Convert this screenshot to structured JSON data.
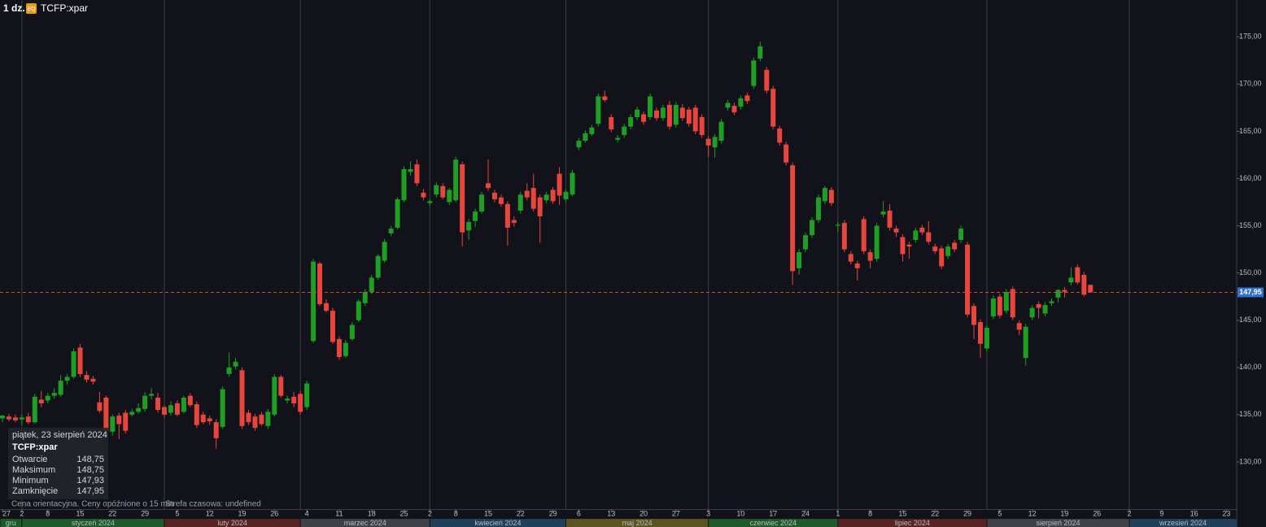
{
  "chart_data": {
    "type": "candlestick",
    "interval": "1 dz.",
    "badge": "EQ",
    "title": "TCFP:xpar",
    "up_color": "#1f9e24",
    "down_color": "#e8453c",
    "x": [
      "2023-12-27",
      "2023-12-28",
      "2023-12-29",
      "2024-01-02",
      "2024-01-03",
      "2024-01-04",
      "2024-01-05",
      "2024-01-08",
      "2024-01-09",
      "2024-01-10",
      "2024-01-11",
      "2024-01-12",
      "2024-01-15",
      "2024-01-16",
      "2024-01-17",
      "2024-01-18",
      "2024-01-19",
      "2024-01-22",
      "2024-01-23",
      "2024-01-24",
      "2024-01-25",
      "2024-01-26",
      "2024-01-29",
      "2024-01-30",
      "2024-01-31",
      "2024-02-01",
      "2024-02-02",
      "2024-02-05",
      "2024-02-06",
      "2024-02-07",
      "2024-02-08",
      "2024-02-09",
      "2024-02-12",
      "2024-02-13",
      "2024-02-14",
      "2024-02-15",
      "2024-02-16",
      "2024-02-19",
      "2024-02-20",
      "2024-02-21",
      "2024-02-22",
      "2024-02-23",
      "2024-02-26",
      "2024-02-27",
      "2024-02-28",
      "2024-02-29",
      "2024-03-01",
      "2024-03-04",
      "2024-03-05",
      "2024-03-06",
      "2024-03-07",
      "2024-03-08",
      "2024-03-11",
      "2024-03-12",
      "2024-03-13",
      "2024-03-14",
      "2024-03-15",
      "2024-03-18",
      "2024-03-19",
      "2024-03-20",
      "2024-03-21",
      "2024-03-22",
      "2024-03-25",
      "2024-03-26",
      "2024-03-27",
      "2024-03-28",
      "2024-04-02",
      "2024-04-03",
      "2024-04-04",
      "2024-04-05",
      "2024-04-08",
      "2024-04-09",
      "2024-04-10",
      "2024-04-11",
      "2024-04-12",
      "2024-04-15",
      "2024-04-16",
      "2024-04-17",
      "2024-04-18",
      "2024-04-19",
      "2024-04-22",
      "2024-04-23",
      "2024-04-24",
      "2024-04-25",
      "2024-04-26",
      "2024-04-29",
      "2024-04-30",
      "2024-05-02",
      "2024-05-03",
      "2024-05-06",
      "2024-05-07",
      "2024-05-08",
      "2024-05-09",
      "2024-05-10",
      "2024-05-13",
      "2024-05-14",
      "2024-05-15",
      "2024-05-16",
      "2024-05-17",
      "2024-05-20",
      "2024-05-21",
      "2024-05-22",
      "2024-05-23",
      "2024-05-24",
      "2024-05-27",
      "2024-05-28",
      "2024-05-29",
      "2024-05-30",
      "2024-05-31",
      "2024-06-03",
      "2024-06-04",
      "2024-06-05",
      "2024-06-06",
      "2024-06-07",
      "2024-06-10",
      "2024-06-11",
      "2024-06-12",
      "2024-06-13",
      "2024-06-14",
      "2024-06-17",
      "2024-06-18",
      "2024-06-19",
      "2024-06-20",
      "2024-06-21",
      "2024-06-24",
      "2024-06-25",
      "2024-06-26",
      "2024-06-27",
      "2024-06-28",
      "2024-07-01",
      "2024-07-02",
      "2024-07-03",
      "2024-07-04",
      "2024-07-05",
      "2024-07-08",
      "2024-07-09",
      "2024-07-10",
      "2024-07-11",
      "2024-07-12",
      "2024-07-15",
      "2024-07-16",
      "2024-07-17",
      "2024-07-18",
      "2024-07-19",
      "2024-07-22",
      "2024-07-23",
      "2024-07-24",
      "2024-07-25",
      "2024-07-26",
      "2024-07-29",
      "2024-07-30",
      "2024-07-31",
      "2024-08-01",
      "2024-08-02",
      "2024-08-05",
      "2024-08-06",
      "2024-08-07",
      "2024-08-08",
      "2024-08-09",
      "2024-08-12",
      "2024-08-13",
      "2024-08-14",
      "2024-08-15",
      "2024-08-16",
      "2024-08-19",
      "2024-08-20",
      "2024-08-21",
      "2024-08-22",
      "2024-08-23"
    ],
    "open": [
      134.6,
      134.8,
      134.7,
      134.5,
      134.8,
      134.2,
      136.6,
      136.5,
      137.0,
      137.1,
      138.6,
      139.0,
      142.1,
      139.2,
      138.8,
      136.3,
      136.8,
      133.2,
      134.9,
      135.2,
      135.0,
      135.3,
      135.6,
      137.0,
      136.8,
      135.8,
      135.2,
      136.2,
      135.3,
      137.0,
      136.1,
      135.0,
      134.6,
      134.2,
      133.7,
      139.3,
      140.1,
      139.7,
      135.2,
      134.8,
      135.0,
      133.8,
      135.0,
      139.0,
      136.5,
      136.9,
      137.2,
      135.8,
      142.8,
      151.0,
      146.8,
      146.0,
      143.0,
      141.2,
      143.0,
      145.0,
      146.8,
      148.0,
      149.5,
      151.3,
      154.2,
      154.8,
      157.7,
      160.7,
      161.5,
      158.5,
      157.4,
      158.3,
      159.2,
      157.5,
      157.7,
      161.5,
      154.5,
      155.5,
      156.5,
      159.5,
      158.5,
      158.0,
      157.3,
      155.6,
      156.6,
      158.7,
      159.0,
      158.0,
      157.7,
      158.8,
      160.5,
      157.8,
      158.3,
      163.3,
      164.0,
      164.7,
      165.8,
      168.7,
      166.5,
      164.1,
      164.6,
      165.5,
      166.5,
      166.8,
      166.5,
      167.2,
      166.4,
      167.8,
      165.7,
      167.5,
      167.3,
      167.5,
      166.5,
      164.2,
      163.3,
      164.0,
      167.5,
      167.7,
      167.6,
      168.8,
      169.8,
      172.7,
      171.5,
      169.5,
      165.3,
      163.6,
      161.4,
      150.5,
      152.5,
      154.0,
      155.6,
      157.6,
      158.8,
      155.0,
      155.3,
      152.0,
      151.0,
      155.7,
      152.2,
      151.5,
      156.2,
      156.6,
      154.7,
      153.8,
      153.0,
      153.5,
      154.8,
      154.3,
      152.8,
      152.6,
      151.8,
      153.2,
      153.5,
      153.0,
      146.5,
      144.8,
      142.0,
      145.4,
      147.5,
      146.0,
      148.3,
      144.7,
      141.0,
      145.3,
      146.7,
      145.7,
      146.8,
      147.4,
      148.2,
      149.0,
      150.6,
      149.8,
      148.75
    ],
    "high": [
      135.0,
      135.1,
      135.0,
      135.0,
      135.2,
      137.2,
      137.5,
      137.3,
      137.8,
      139.2,
      139.3,
      142.0,
      142.5,
      139.6,
      139.1,
      137.4,
      137.0,
      135.0,
      135.2,
      135.5,
      135.6,
      136.2,
      137.4,
      137.8,
      137.3,
      136.0,
      136.4,
      136.5,
      137.0,
      137.3,
      136.4,
      135.3,
      134.9,
      134.5,
      138.0,
      141.6,
      141.0,
      140.0,
      135.5,
      135.1,
      135.3,
      135.6,
      139.3,
      139.2,
      137.0,
      137.4,
      137.5,
      138.6,
      151.5,
      151.2,
      147.2,
      146.3,
      143.3,
      142.9,
      144.8,
      147.2,
      148.3,
      149.8,
      152.0,
      153.6,
      155.0,
      158.0,
      161.3,
      161.8,
      162.0,
      158.9,
      157.8,
      159.6,
      159.5,
      159.0,
      162.3,
      161.8,
      155.7,
      156.8,
      158.6,
      162.0,
      158.8,
      158.3,
      157.6,
      156.0,
      158.6,
      159.5,
      160.5,
      158.3,
      158.6,
      159.1,
      161.2,
      158.9,
      160.9,
      164.3,
      165.1,
      165.7,
      169.0,
      169.3,
      166.8,
      164.6,
      165.8,
      166.8,
      167.6,
      167.1,
      169.0,
      167.5,
      167.8,
      168.2,
      168.1,
      167.9,
      167.6,
      167.8,
      166.8,
      164.5,
      164.7,
      166.3,
      168.3,
      168.0,
      168.8,
      169.1,
      172.8,
      174.5,
      171.8,
      169.8,
      165.6,
      163.9,
      161.7,
      152.5,
      154.3,
      155.9,
      158.3,
      159.2,
      159.1,
      155.4,
      155.6,
      152.3,
      151.3,
      156.0,
      152.5,
      155.3,
      157.6,
      157.3,
      155.0,
      154.1,
      153.3,
      154.8,
      155.1,
      155.5,
      153.1,
      152.9,
      153.1,
      153.5,
      155.0,
      153.3,
      146.8,
      145.1,
      144.5,
      147.6,
      147.8,
      148.3,
      148.6,
      145.0,
      144.6,
      146.6,
      147.0,
      146.9,
      147.3,
      148.3,
      148.5,
      150.6,
      150.9,
      150.1,
      148.75
    ],
    "low": [
      134.2,
      134.3,
      134.2,
      133.9,
      134.0,
      134.0,
      135.8,
      136.2,
      136.7,
      136.9,
      138.2,
      138.8,
      139.0,
      138.4,
      138.2,
      135.2,
      132.9,
      132.8,
      132.4,
      133.0,
      134.8,
      135.1,
      135.3,
      136.6,
      135.2,
      134.7,
      134.9,
      134.8,
      135.1,
      135.8,
      133.6,
      134.0,
      133.9,
      131.4,
      133.5,
      139.0,
      139.8,
      133.5,
      133.9,
      133.3,
      133.8,
      133.5,
      134.8,
      136.8,
      136.2,
      135.8,
      135.0,
      135.5,
      142.6,
      146.5,
      145.8,
      142.5,
      140.8,
      141.0,
      142.8,
      144.8,
      146.5,
      147.8,
      149.3,
      151.1,
      153.9,
      154.6,
      157.5,
      160.3,
      159.2,
      157.7,
      157.1,
      158.0,
      157.8,
      157.2,
      157.5,
      152.8,
      153.5,
      154.9,
      156.3,
      158.7,
      157.5,
      157.0,
      152.9,
      154.9,
      156.3,
      157.7,
      156.5,
      153.2,
      157.4,
      157.3,
      157.2,
      157.5,
      158.1,
      163.0,
      163.8,
      164.5,
      165.5,
      168.1,
      164.9,
      163.8,
      164.3,
      165.2,
      166.2,
      165.7,
      166.2,
      166.1,
      166.1,
      165.2,
      165.4,
      166.1,
      165.5,
      164.7,
      164.3,
      162.3,
      162.2,
      163.7,
      167.2,
      166.7,
      167.3,
      167.9,
      169.5,
      172.4,
      169.0,
      165.2,
      163.5,
      161.4,
      148.7,
      149.8,
      152.2,
      153.7,
      155.3,
      157.3,
      157.1,
      154.3,
      152.2,
      150.9,
      149.2,
      152.0,
      150.5,
      151.2,
      155.9,
      154.5,
      153.8,
      151.2,
      151.5,
      153.2,
      154.0,
      153.0,
      152.0,
      150.4,
      151.5,
      152.2,
      153.2,
      145.3,
      143.0,
      141.0,
      141.7,
      145.1,
      145.2,
      145.7,
      145.0,
      143.4,
      140.2,
      145.0,
      145.2,
      145.4,
      146.5,
      146.9,
      147.4,
      148.7,
      148.8,
      147.5,
      147.93
    ],
    "close": [
      134.9,
      134.5,
      134.4,
      134.7,
      134.2,
      136.9,
      136.2,
      137.0,
      137.3,
      138.6,
      139.0,
      141.7,
      139.3,
      138.7,
      138.5,
      135.4,
      133.3,
      134.8,
      134.0,
      133.3,
      135.3,
      135.7,
      137.0,
      137.2,
      135.5,
      135.0,
      136.0,
      135.0,
      136.8,
      136.0,
      133.9,
      134.2,
      134.3,
      132.5,
      137.7,
      140.0,
      140.6,
      133.8,
      134.2,
      133.6,
      134.0,
      135.3,
      139.0,
      137.0,
      136.7,
      136.2,
      135.3,
      138.3,
      151.2,
      146.7,
      146.0,
      142.7,
      141.1,
      142.6,
      144.5,
      147.0,
      148.0,
      149.5,
      151.8,
      153.3,
      154.7,
      157.8,
      161.0,
      161.0,
      159.5,
      158.0,
      157.6,
      159.3,
      158.0,
      158.8,
      162.0,
      154.3,
      155.4,
      156.5,
      158.3,
      159.0,
      157.8,
      157.3,
      154.8,
      155.3,
      158.3,
      158.0,
      156.8,
      156.0,
      158.3,
      157.6,
      158.2,
      158.6,
      160.6,
      164.0,
      164.8,
      165.4,
      168.7,
      168.3,
      165.2,
      164.3,
      165.5,
      166.5,
      167.3,
      166.0,
      168.7,
      166.4,
      167.5,
      165.5,
      167.8,
      166.4,
      165.8,
      165.0,
      164.6,
      163.5,
      164.4,
      166.0,
      168.0,
      167.0,
      168.5,
      168.2,
      172.5,
      174.0,
      169.3,
      165.5,
      163.8,
      161.7,
      150.2,
      152.2,
      154.0,
      155.6,
      158.0,
      159.0,
      157.4,
      155.1,
      152.5,
      151.2,
      150.5,
      152.3,
      151.3,
      155.0,
      156.5,
      154.8,
      154.3,
      152.0,
      152.8,
      154.5,
      154.3,
      153.3,
      152.3,
      150.7,
      152.8,
      152.5,
      154.7,
      145.6,
      144.5,
      142.5,
      144.2,
      147.3,
      145.5,
      148.0,
      145.3,
      144.0,
      144.3,
      146.3,
      146.3,
      146.6,
      147.0,
      148.2,
      148.0,
      149.5,
      149.0,
      147.7,
      147.95
    ],
    "ylim": [
      125,
      178.9
    ],
    "yticks": [
      {
        "value": 130,
        "label": "130,00"
      },
      {
        "value": 135,
        "label": "135,00"
      },
      {
        "value": 140,
        "label": "140,00"
      },
      {
        "value": 145,
        "label": "145,00"
      },
      {
        "value": 150,
        "label": "150,00"
      },
      {
        "value": 155,
        "label": "155,00"
      },
      {
        "value": 160,
        "label": "160,00"
      },
      {
        "value": 165,
        "label": "165,00"
      },
      {
        "value": 170,
        "label": "170,00"
      },
      {
        "value": 175,
        "label": "175,00"
      }
    ],
    "xticks": [
      {
        "value": "2023-12-27",
        "label": "27"
      },
      {
        "value": "2024-01-02",
        "label": "2"
      },
      {
        "value": "2024-01-08",
        "label": "8"
      },
      {
        "value": "2024-01-15",
        "label": "15"
      },
      {
        "value": "2024-01-22",
        "label": "22"
      },
      {
        "value": "2024-01-29",
        "label": "29"
      },
      {
        "value": "2024-02-05",
        "label": "5"
      },
      {
        "value": "2024-02-12",
        "label": "12"
      },
      {
        "value": "2024-02-19",
        "label": "19"
      },
      {
        "value": "2024-02-26",
        "label": "26"
      },
      {
        "value": "2024-03-04",
        "label": "4"
      },
      {
        "value": "2024-03-11",
        "label": "11"
      },
      {
        "value": "2024-03-18",
        "label": "18"
      },
      {
        "value": "2024-03-25",
        "label": "25"
      },
      {
        "value": "2024-04-02",
        "label": "2"
      },
      {
        "value": "2024-04-08",
        "label": "8"
      },
      {
        "value": "2024-04-15",
        "label": "15"
      },
      {
        "value": "2024-04-22",
        "label": "22"
      },
      {
        "value": "2024-04-29",
        "label": "29"
      },
      {
        "value": "2024-05-06",
        "label": "6"
      },
      {
        "value": "2024-05-13",
        "label": "13"
      },
      {
        "value": "2024-05-20",
        "label": "20"
      },
      {
        "value": "2024-05-27",
        "label": "27"
      },
      {
        "value": "2024-06-03",
        "label": "3"
      },
      {
        "value": "2024-06-10",
        "label": "10"
      },
      {
        "value": "2024-06-17",
        "label": "17"
      },
      {
        "value": "2024-06-24",
        "label": "24"
      },
      {
        "value": "2024-07-01",
        "label": "1"
      },
      {
        "value": "2024-07-08",
        "label": "8"
      },
      {
        "value": "2024-07-15",
        "label": "15"
      },
      {
        "value": "2024-07-22",
        "label": "22"
      },
      {
        "value": "2024-07-29",
        "label": "29"
      },
      {
        "value": "2024-08-05",
        "label": "5"
      },
      {
        "value": "2024-08-12",
        "label": "12"
      },
      {
        "value": "2024-08-19",
        "label": "19"
      },
      {
        "value": "2024-08-26",
        "label": "26"
      },
      {
        "value": "2024-09-02",
        "label": "2"
      },
      {
        "value": "2024-09-09",
        "label": "9"
      },
      {
        "value": "2024-09-16",
        "label": "16"
      },
      {
        "value": "2024-09-23",
        "label": "23"
      }
    ],
    "months": [
      {
        "value": "2023-12-27",
        "label": "gru",
        "color": "#1f5a2a"
      },
      {
        "value": "2024-01-02",
        "label": "styczeń 2024",
        "color": "#1f5a2a"
      },
      {
        "value": "2024-02-01",
        "label": "luty 2024",
        "color": "#5a2323"
      },
      {
        "value": "2024-03-01",
        "label": "marzec 2024",
        "color": "#3f4147"
      },
      {
        "value": "2024-04-02",
        "label": "kwiecień 2024",
        "color": "#1f3f5a"
      },
      {
        "value": "2024-05-02",
        "label": "maj 2024",
        "color": "#5a5420"
      },
      {
        "value": "2024-06-03",
        "label": "czerwiec 2024",
        "color": "#1f5a2a"
      },
      {
        "value": "2024-07-01",
        "label": "lipiec 2024",
        "color": "#5a2323"
      },
      {
        "value": "2024-08-01",
        "label": "sierpień 2024",
        "color": "#3f4147"
      },
      {
        "value": "2024-09-02",
        "label": "wrzesień 2024",
        "color": "#1f3f5a"
      }
    ],
    "last_price": {
      "value": 147.95,
      "label": "147,95"
    },
    "grid": true
  },
  "tooltip": {
    "date": "piątek, 23 sierpień 2024",
    "symbol": "TCFP:xpar",
    "rows": [
      [
        "Otwarcie",
        "148,75"
      ],
      [
        "Maksimum",
        "148,75"
      ],
      [
        "Minimum",
        "147,93"
      ],
      [
        "Zamknięcie",
        "147,95"
      ]
    ]
  },
  "footer": {
    "note": "Cena orientacyjna. Ceny opóźnione o 15 min",
    "timezone": "Strefa czasowa: undefined"
  }
}
